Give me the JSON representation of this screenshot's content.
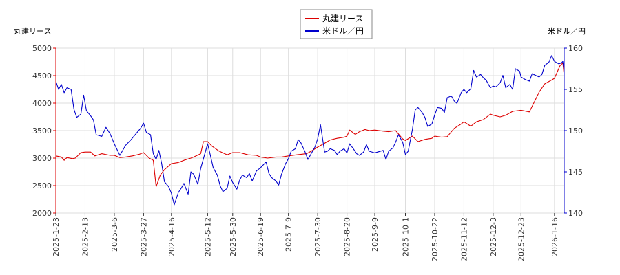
{
  "chart_data": {
    "type": "line",
    "left_axis_label": "丸建リース",
    "right_axis_label": "米ドル／円",
    "left_ylim": [
      2000,
      5000
    ],
    "right_ylim": [
      140,
      160
    ],
    "left_ticks": [
      2000,
      2500,
      3000,
      3500,
      4000,
      4500,
      5000
    ],
    "right_ticks": [
      140,
      145,
      150,
      155,
      160
    ],
    "x_range": [
      "2025-01-23",
      "2026-01-23"
    ],
    "x_tick_labels": [
      "2025-1-23",
      "2025-2-13",
      "2025-3-6",
      "2025-3-27",
      "2025-4-16",
      "2025-5-12",
      "2025-5-30",
      "2025-6-19",
      "2025-7-9",
      "2025-7-30",
      "2025-8-20",
      "2025-9-9",
      "2025-10-1",
      "2025-10-22",
      "2025-11-12",
      "2025-12-3",
      "2025-12-23",
      "2026-1-16"
    ],
    "x_tick_dates": [
      "2025-01-23",
      "2025-02-13",
      "2025-03-06",
      "2025-03-27",
      "2025-04-16",
      "2025-05-12",
      "2025-05-30",
      "2025-06-19",
      "2025-07-09",
      "2025-07-30",
      "2025-08-20",
      "2025-09-09",
      "2025-10-01",
      "2025-10-22",
      "2025-11-12",
      "2025-12-03",
      "2025-12-23",
      "2026-01-16"
    ],
    "grid": true,
    "legend_position": "top-center",
    "series": [
      {
        "name": "丸建リース",
        "axis": "left",
        "color": "#dd0000",
        "points": [
          [
            "2025-01-23",
            3040
          ],
          [
            "2025-01-27",
            3020
          ],
          [
            "2025-01-29",
            2960
          ],
          [
            "2025-01-31",
            3010
          ],
          [
            "2025-02-04",
            2990
          ],
          [
            "2025-02-06",
            3000
          ],
          [
            "2025-02-10",
            3100
          ],
          [
            "2025-02-13",
            3110
          ],
          [
            "2025-02-17",
            3110
          ],
          [
            "2025-02-20",
            3040
          ],
          [
            "2025-02-25",
            3080
          ],
          [
            "2025-03-03",
            3050
          ],
          [
            "2025-03-06",
            3050
          ],
          [
            "2025-03-10",
            3010
          ],
          [
            "2025-03-14",
            3020
          ],
          [
            "2025-03-19",
            3040
          ],
          [
            "2025-03-24",
            3070
          ],
          [
            "2025-03-27",
            3100
          ],
          [
            "2025-03-31",
            3000
          ],
          [
            "2025-04-03",
            2960
          ],
          [
            "2025-04-05",
            2480
          ],
          [
            "2025-04-08",
            2690
          ],
          [
            "2025-04-11",
            2790
          ],
          [
            "2025-04-16",
            2900
          ],
          [
            "2025-04-21",
            2920
          ],
          [
            "2025-04-25",
            2960
          ],
          [
            "2025-04-30",
            3000
          ],
          [
            "2025-05-02",
            3020
          ],
          [
            "2025-05-07",
            3080
          ],
          [
            "2025-05-09",
            3300
          ],
          [
            "2025-05-12",
            3300
          ],
          [
            "2025-05-15",
            3220
          ],
          [
            "2025-05-20",
            3130
          ],
          [
            "2025-05-26",
            3060
          ],
          [
            "2025-05-30",
            3100
          ],
          [
            "2025-06-04",
            3100
          ],
          [
            "2025-06-10",
            3060
          ],
          [
            "2025-06-16",
            3050
          ],
          [
            "2025-06-19",
            3020
          ],
          [
            "2025-06-24",
            3000
          ],
          [
            "2025-06-30",
            3020
          ],
          [
            "2025-07-04",
            3020
          ],
          [
            "2025-07-09",
            3040
          ],
          [
            "2025-07-15",
            3060
          ],
          [
            "2025-07-22",
            3080
          ],
          [
            "2025-07-25",
            3120
          ],
          [
            "2025-07-30",
            3200
          ],
          [
            "2025-08-04",
            3270
          ],
          [
            "2025-08-08",
            3330
          ],
          [
            "2025-08-13",
            3360
          ],
          [
            "2025-08-18",
            3380
          ],
          [
            "2025-08-20",
            3400
          ],
          [
            "2025-08-22",
            3510
          ],
          [
            "2025-08-26",
            3430
          ],
          [
            "2025-08-29",
            3480
          ],
          [
            "2025-09-02",
            3520
          ],
          [
            "2025-09-05",
            3500
          ],
          [
            "2025-09-09",
            3510
          ],
          [
            "2025-09-15",
            3490
          ],
          [
            "2025-09-19",
            3480
          ],
          [
            "2025-09-24",
            3500
          ],
          [
            "2025-09-29",
            3350
          ],
          [
            "2025-10-01",
            3320
          ],
          [
            "2025-10-06",
            3400
          ],
          [
            "2025-10-10",
            3300
          ],
          [
            "2025-10-15",
            3340
          ],
          [
            "2025-10-20",
            3360
          ],
          [
            "2025-10-22",
            3400
          ],
          [
            "2025-10-27",
            3380
          ],
          [
            "2025-10-31",
            3390
          ],
          [
            "2025-11-05",
            3540
          ],
          [
            "2025-11-10",
            3620
          ],
          [
            "2025-11-12",
            3660
          ],
          [
            "2025-11-17",
            3580
          ],
          [
            "2025-11-21",
            3660
          ],
          [
            "2025-11-26",
            3700
          ],
          [
            "2025-12-01",
            3800
          ],
          [
            "2025-12-03",
            3780
          ],
          [
            "2025-12-08",
            3750
          ],
          [
            "2025-12-12",
            3780
          ],
          [
            "2025-12-17",
            3850
          ],
          [
            "2025-12-23",
            3870
          ],
          [
            "2025-12-29",
            3840
          ],
          [
            "2026-01-05",
            4200
          ],
          [
            "2026-01-09",
            4350
          ],
          [
            "2026-01-14",
            4420
          ],
          [
            "2026-01-16",
            4450
          ],
          [
            "2026-01-20",
            4680
          ],
          [
            "2026-01-22",
            4730
          ],
          [
            "2026-01-23",
            4500
          ]
        ]
      },
      {
        "name": "米ドル／円",
        "axis": "right",
        "color": "#0000cc",
        "points": [
          [
            "2025-01-23",
            156.0
          ],
          [
            "2025-01-25",
            155.0
          ],
          [
            "2025-01-27",
            155.6
          ],
          [
            "2025-01-29",
            154.6
          ],
          [
            "2025-01-31",
            155.2
          ],
          [
            "2025-02-03",
            155.0
          ],
          [
            "2025-02-05",
            152.6
          ],
          [
            "2025-02-07",
            151.6
          ],
          [
            "2025-02-10",
            152.0
          ],
          [
            "2025-02-12",
            154.3
          ],
          [
            "2025-02-14",
            152.4
          ],
          [
            "2025-02-17",
            151.8
          ],
          [
            "2025-02-19",
            151.3
          ],
          [
            "2025-02-21",
            149.5
          ],
          [
            "2025-02-25",
            149.3
          ],
          [
            "2025-02-28",
            150.4
          ],
          [
            "2025-03-03",
            149.6
          ],
          [
            "2025-03-06",
            148.4
          ],
          [
            "2025-03-10",
            147.0
          ],
          [
            "2025-03-14",
            148.2
          ],
          [
            "2025-03-18",
            148.9
          ],
          [
            "2025-03-21",
            149.5
          ],
          [
            "2025-03-25",
            150.3
          ],
          [
            "2025-03-27",
            150.9
          ],
          [
            "2025-03-29",
            149.8
          ],
          [
            "2025-04-01",
            149.5
          ],
          [
            "2025-04-03",
            147.2
          ],
          [
            "2025-04-05",
            146.5
          ],
          [
            "2025-04-07",
            147.6
          ],
          [
            "2025-04-09",
            146.0
          ],
          [
            "2025-04-11",
            143.8
          ],
          [
            "2025-04-14",
            143.2
          ],
          [
            "2025-04-16",
            142.4
          ],
          [
            "2025-04-18",
            141.0
          ],
          [
            "2025-04-21",
            142.5
          ],
          [
            "2025-04-23",
            143.0
          ],
          [
            "2025-04-25",
            143.6
          ],
          [
            "2025-04-28",
            142.3
          ],
          [
            "2025-04-30",
            145.0
          ],
          [
            "2025-05-02",
            144.7
          ],
          [
            "2025-05-05",
            143.5
          ],
          [
            "2025-05-07",
            145.4
          ],
          [
            "2025-05-09",
            146.6
          ],
          [
            "2025-05-12",
            148.4
          ],
          [
            "2025-05-14",
            147.0
          ],
          [
            "2025-05-16",
            145.5
          ],
          [
            "2025-05-19",
            144.6
          ],
          [
            "2025-05-21",
            143.3
          ],
          [
            "2025-05-23",
            142.6
          ],
          [
            "2025-05-26",
            143.0
          ],
          [
            "2025-05-28",
            144.5
          ],
          [
            "2025-05-30",
            143.7
          ],
          [
            "2025-06-02",
            142.9
          ],
          [
            "2025-06-04",
            144.0
          ],
          [
            "2025-06-06",
            144.6
          ],
          [
            "2025-06-09",
            144.3
          ],
          [
            "2025-06-11",
            144.8
          ],
          [
            "2025-06-13",
            143.9
          ],
          [
            "2025-06-16",
            145.1
          ],
          [
            "2025-06-19",
            145.5
          ],
          [
            "2025-06-23",
            146.2
          ],
          [
            "2025-06-25",
            144.8
          ],
          [
            "2025-06-27",
            144.3
          ],
          [
            "2025-06-30",
            143.9
          ],
          [
            "2025-07-02",
            143.4
          ],
          [
            "2025-07-04",
            144.7
          ],
          [
            "2025-07-07",
            146.0
          ],
          [
            "2025-07-09",
            146.6
          ],
          [
            "2025-07-11",
            147.5
          ],
          [
            "2025-07-14",
            147.8
          ],
          [
            "2025-07-16",
            148.9
          ],
          [
            "2025-07-18",
            148.5
          ],
          [
            "2025-07-21",
            147.4
          ],
          [
            "2025-07-23",
            146.5
          ],
          [
            "2025-07-25",
            147.1
          ],
          [
            "2025-07-28",
            148.0
          ],
          [
            "2025-07-30",
            149.0
          ],
          [
            "2025-08-01",
            150.7
          ],
          [
            "2025-08-04",
            147.4
          ],
          [
            "2025-08-06",
            147.5
          ],
          [
            "2025-08-08",
            147.8
          ],
          [
            "2025-08-11",
            147.6
          ],
          [
            "2025-08-13",
            147.1
          ],
          [
            "2025-08-15",
            147.5
          ],
          [
            "2025-08-18",
            147.8
          ],
          [
            "2025-08-20",
            147.3
          ],
          [
            "2025-08-22",
            148.4
          ],
          [
            "2025-08-25",
            147.7
          ],
          [
            "2025-08-27",
            147.2
          ],
          [
            "2025-08-29",
            147.0
          ],
          [
            "2025-09-01",
            147.4
          ],
          [
            "2025-09-03",
            148.3
          ],
          [
            "2025-09-05",
            147.5
          ],
          [
            "2025-09-09",
            147.3
          ],
          [
            "2025-09-11",
            147.4
          ],
          [
            "2025-09-15",
            147.6
          ],
          [
            "2025-09-17",
            146.5
          ],
          [
            "2025-09-19",
            147.5
          ],
          [
            "2025-09-22",
            147.9
          ],
          [
            "2025-09-24",
            148.6
          ],
          [
            "2025-09-26",
            149.5
          ],
          [
            "2025-09-29",
            148.6
          ],
          [
            "2025-10-01",
            147.1
          ],
          [
            "2025-10-03",
            147.5
          ],
          [
            "2025-10-06",
            150.1
          ],
          [
            "2025-10-08",
            152.5
          ],
          [
            "2025-10-10",
            152.8
          ],
          [
            "2025-10-13",
            152.2
          ],
          [
            "2025-10-15",
            151.6
          ],
          [
            "2025-10-17",
            150.5
          ],
          [
            "2025-10-20",
            150.8
          ],
          [
            "2025-10-22",
            151.9
          ],
          [
            "2025-10-24",
            152.8
          ],
          [
            "2025-10-27",
            152.7
          ],
          [
            "2025-10-29",
            152.2
          ],
          [
            "2025-10-31",
            154.0
          ],
          [
            "2025-11-03",
            154.2
          ],
          [
            "2025-11-05",
            153.6
          ],
          [
            "2025-11-07",
            153.3
          ],
          [
            "2025-11-10",
            154.6
          ],
          [
            "2025-11-12",
            155.0
          ],
          [
            "2025-11-14",
            154.6
          ],
          [
            "2025-11-17",
            155.1
          ],
          [
            "2025-11-19",
            157.3
          ],
          [
            "2025-11-21",
            156.5
          ],
          [
            "2025-11-24",
            156.8
          ],
          [
            "2025-11-26",
            156.4
          ],
          [
            "2025-11-28",
            156.1
          ],
          [
            "2025-12-01",
            155.2
          ],
          [
            "2025-12-03",
            155.4
          ],
          [
            "2025-12-05",
            155.3
          ],
          [
            "2025-12-08",
            155.8
          ],
          [
            "2025-12-10",
            156.7
          ],
          [
            "2025-12-12",
            155.2
          ],
          [
            "2025-12-15",
            155.6
          ],
          [
            "2025-12-17",
            155.0
          ],
          [
            "2025-12-19",
            157.5
          ],
          [
            "2025-12-22",
            157.2
          ],
          [
            "2025-12-23",
            156.5
          ],
          [
            "2025-12-26",
            156.2
          ],
          [
            "2025-12-29",
            156.0
          ],
          [
            "2025-12-31",
            156.9
          ],
          [
            "2026-01-05",
            156.5
          ],
          [
            "2026-01-07",
            156.8
          ],
          [
            "2026-01-09",
            157.9
          ],
          [
            "2026-01-12",
            158.3
          ],
          [
            "2026-01-14",
            159.1
          ],
          [
            "2026-01-16",
            158.4
          ],
          [
            "2026-01-19",
            158.1
          ],
          [
            "2026-01-21",
            158.2
          ],
          [
            "2026-01-22",
            158.4
          ],
          [
            "2026-01-23",
            157.2
          ]
        ]
      }
    ]
  }
}
